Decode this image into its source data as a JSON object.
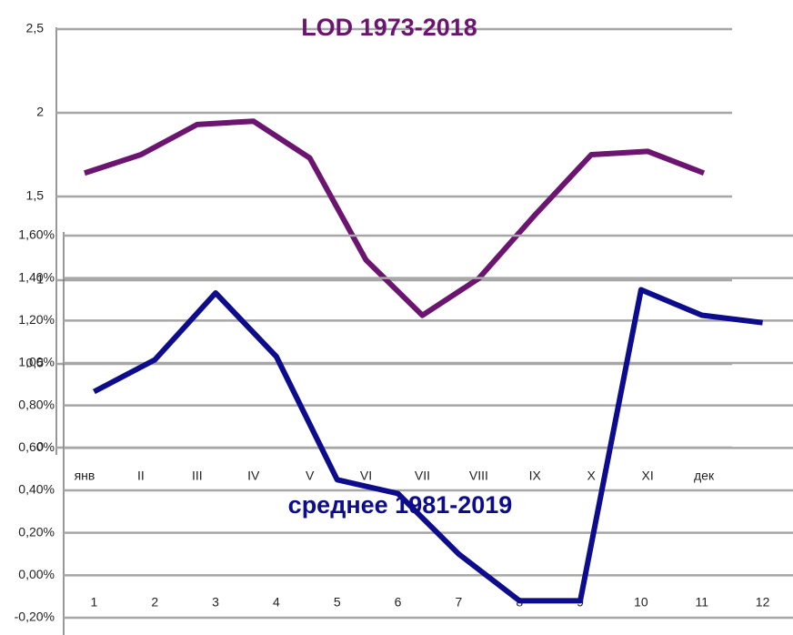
{
  "chart_data": [
    {
      "type": "line",
      "title": "LOD 1973-2018",
      "categories": [
        "янв",
        "II",
        "III",
        "IV",
        "V",
        "VI",
        "VII",
        "VIII",
        "IX",
        "X",
        "XI",
        "дек"
      ],
      "series": [
        {
          "color": "#6b1470",
          "values": [
            1.64,
            1.75,
            1.93,
            1.95,
            1.73,
            1.12,
            0.79,
            1.01,
            1.39,
            1.75,
            1.77,
            1.64
          ]
        }
      ],
      "ylim": [
        0,
        2.5
      ],
      "yticks": [
        {
          "value": 0,
          "label": "0"
        },
        {
          "value": 0.5,
          "label": "0,5"
        },
        1,
        {
          "value": 1.5,
          "label": "1,5"
        },
        2,
        {
          "value": 2.5,
          "label": "2,5"
        }
      ],
      "grid": true
    },
    {
      "type": "line",
      "title": "среднее 1981-2019",
      "categories": [
        "1",
        "2",
        "3",
        "4",
        "5",
        "6",
        "7",
        "8",
        "9",
        "10",
        "11",
        "12"
      ],
      "series": [
        {
          "color": "#0c0c8c",
          "values": [
            0.865,
            1.015,
            1.33,
            1.03,
            0.45,
            0.385,
            0.1,
            -0.12,
            -0.12,
            1.345,
            1.225,
            1.19
          ]
        }
      ],
      "ylim": [
        -0.2,
        1.6
      ],
      "yticks": [
        {
          "value": -0.2,
          "label": "-0,20%"
        },
        {
          "value": 0,
          "label": "0,00%"
        },
        {
          "value": 0.2,
          "label": "0,20%"
        },
        {
          "value": 0.4,
          "label": "0,40%"
        },
        {
          "value": 0.6,
          "label": "0,60%"
        },
        {
          "value": 0.8,
          "label": "0,80%"
        },
        {
          "value": 1.0,
          "label": "1,00%"
        },
        {
          "value": 1.2,
          "label": "1,20%"
        },
        {
          "value": 1.4,
          "label": "1,40%"
        },
        {
          "value": 1.6,
          "label": "1,60%"
        }
      ],
      "grid": true
    }
  ]
}
